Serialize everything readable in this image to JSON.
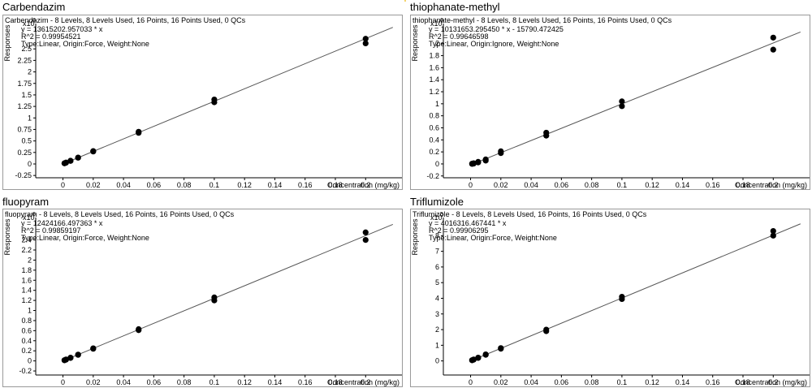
{
  "chart_data": [
    {
      "type": "scatter",
      "title": "Carbendazim",
      "header": "Carbendazim - 8 Levels, 8 Levels Used, 16 Points, 16 Points Used, 0 QCs",
      "equation": "y = 13615202.957033 * x",
      "r2": "R^2 = 0.99954521",
      "fit_type": "Type:Linear, Origin:Force, Weight:None",
      "xlabel": "Concentration (mg/kg)",
      "ylabel": "Responses",
      "yscale_label": "x10",
      "yscale_exp": "6",
      "xlim": [
        -0.018,
        0.224
      ],
      "ylim": [
        -0.3,
        2.98
      ],
      "xticks": [
        0,
        0.02,
        0.04,
        0.06,
        0.08,
        0.1,
        0.12,
        0.14,
        0.16,
        0.18,
        0.2
      ],
      "xtick_labels": [
        "0",
        "0.02",
        "0.04",
        "0.06",
        "0.08",
        "0.1",
        "0.12",
        "0.14",
        "0.16",
        "0.18",
        "0.2"
      ],
      "yticks": [
        -0.25,
        0,
        0.25,
        0.5,
        0.75,
        1,
        1.25,
        1.5,
        1.75,
        2,
        2.25,
        2.5
      ],
      "ytick_labels": [
        "-0.25",
        "0",
        "0.25",
        "0.5",
        "0.75",
        "1",
        "1.25",
        "1.5",
        "1.75",
        "2",
        "2.25",
        "2.5"
      ],
      "line": {
        "slope": 13.615202957,
        "intercept": 0,
        "x_range": [
          0,
          0.218
        ]
      },
      "points": {
        "x": [
          0.001,
          0.001,
          0.002,
          0.002,
          0.005,
          0.005,
          0.01,
          0.01,
          0.02,
          0.02,
          0.05,
          0.05,
          0.1,
          0.1,
          0.2,
          0.2
        ],
        "y": [
          0.013,
          0.016,
          0.026,
          0.03,
          0.066,
          0.07,
          0.135,
          0.14,
          0.27,
          0.28,
          0.675,
          0.7,
          1.34,
          1.4,
          2.62,
          2.72
        ]
      }
    },
    {
      "type": "scatter",
      "title": "thiophanate-methyl",
      "header": "thiophanate-methyl - 8 Levels, 8 Levels Used, 16 Points, 16 Points Used, 0 QCs",
      "equation": "y = 10131653.295450 * x  - 15790.472425",
      "r2": "R^2 = 0.99646598",
      "fit_type": "Type:Linear, Origin:Ignore, Weight:None",
      "xlabel": "Concentration (mg/kg)",
      "ylabel": "Responses",
      "yscale_label": "x10",
      "yscale_exp": "6",
      "xlim": [
        -0.018,
        0.224
      ],
      "ylim": [
        -0.23,
        2.28
      ],
      "xticks": [
        0,
        0.02,
        0.04,
        0.06,
        0.08,
        0.1,
        0.12,
        0.14,
        0.16,
        0.18,
        0.2
      ],
      "xtick_labels": [
        "0",
        "0.02",
        "0.04",
        "0.06",
        "0.08",
        "0.1",
        "0.12",
        "0.14",
        "0.16",
        "0.18",
        "0.2"
      ],
      "yticks": [
        -0.2,
        0,
        0.2,
        0.4,
        0.6,
        0.8,
        1,
        1.2,
        1.4,
        1.6,
        1.8,
        2
      ],
      "ytick_labels": [
        "-0.2",
        "0",
        "0.2",
        "0.4",
        "0.6",
        "0.8",
        "1",
        "1.2",
        "1.4",
        "1.6",
        "1.8",
        "2"
      ],
      "line": {
        "slope": 10.13165329545,
        "intercept": -0.015790472,
        "x_range": [
          0,
          0.218
        ]
      },
      "points": {
        "x": [
          0.001,
          0.001,
          0.002,
          0.002,
          0.005,
          0.005,
          0.01,
          0.01,
          0.02,
          0.02,
          0.05,
          0.05,
          0.1,
          0.1,
          0.2,
          0.2
        ],
        "y": [
          0.0,
          0.005,
          0.005,
          0.012,
          0.025,
          0.035,
          0.055,
          0.075,
          0.18,
          0.21,
          0.47,
          0.52,
          0.96,
          1.04,
          1.9,
          2.1
        ]
      }
    },
    {
      "type": "scatter",
      "title": "fluopyram",
      "header": "fluopyram - 8 Levels, 8 Levels Used, 16 Points, 16 Points Used, 0 QCs",
      "equation": "y = 12424166.497363 * x",
      "r2": "R^2 = 0.99859197",
      "fit_type": "Type:Linear, Origin:Force, Weight:None",
      "xlabel": "Concentration (mg/kg)",
      "ylabel": "Responses",
      "yscale_label": "x10",
      "yscale_exp": "6",
      "xlim": [
        -0.018,
        0.224
      ],
      "ylim": [
        -0.28,
        2.78
      ],
      "xticks": [
        0,
        0.02,
        0.04,
        0.06,
        0.08,
        0.1,
        0.12,
        0.14,
        0.16,
        0.18,
        0.2
      ],
      "xtick_labels": [
        "0",
        "0.02",
        "0.04",
        "0.06",
        "0.08",
        "0.1",
        "0.12",
        "0.14",
        "0.16",
        "0.18",
        "0.2"
      ],
      "yticks": [
        -0.2,
        0,
        0.2,
        0.4,
        0.6,
        0.8,
        1,
        1.2,
        1.4,
        1.6,
        1.8,
        2,
        2.2,
        2.4
      ],
      "ytick_labels": [
        "-0.2",
        "0",
        "0.2",
        "0.4",
        "0.6",
        "0.8",
        "1",
        "1.2",
        "1.4",
        "1.6",
        "1.8",
        "2",
        "2.2",
        "2.4"
      ],
      "line": {
        "slope": 12.424166497,
        "intercept": 0,
        "x_range": [
          0,
          0.218
        ]
      },
      "points": {
        "x": [
          0.001,
          0.001,
          0.002,
          0.002,
          0.005,
          0.005,
          0.01,
          0.01,
          0.02,
          0.02,
          0.05,
          0.05,
          0.1,
          0.1,
          0.2,
          0.2
        ],
        "y": [
          0.012,
          0.015,
          0.024,
          0.028,
          0.058,
          0.064,
          0.12,
          0.125,
          0.24,
          0.25,
          0.61,
          0.63,
          1.2,
          1.26,
          2.4,
          2.55
        ]
      }
    },
    {
      "type": "scatter",
      "title": "Triflumizole",
      "header": "Triflumizole - 8 Levels, 8 Levels Used, 16 Points, 16 Points Used, 0 QCs",
      "equation": "y = 4016316.467441 * x",
      "r2": "R^2 = 0.99906295",
      "fit_type": "Type:Linear, Origin:Force, Weight:None",
      "xlabel": "Concentration (mg/kg)",
      "ylabel": "Responses",
      "yscale_label": "x10",
      "yscale_exp": "5",
      "xlim": [
        -0.018,
        0.224
      ],
      "ylim": [
        -0.9,
        8.95
      ],
      "xticks": [
        0,
        0.02,
        0.04,
        0.06,
        0.08,
        0.1,
        0.12,
        0.14,
        0.16,
        0.18,
        0.2
      ],
      "xtick_labels": [
        "0",
        "0.02",
        "0.04",
        "0.06",
        "0.08",
        "0.1",
        "0.12",
        "0.14",
        "0.16",
        "0.18",
        "0.2"
      ],
      "yticks": [
        0,
        1,
        2,
        3,
        4,
        5,
        6,
        7,
        8
      ],
      "ytick_labels": [
        "0",
        "1",
        "2",
        "3",
        "4",
        "5",
        "6",
        "7",
        "8"
      ],
      "line": {
        "slope": 40.16316467,
        "intercept": 0,
        "x_range": [
          0,
          0.218
        ]
      },
      "points": {
        "x": [
          0.001,
          0.001,
          0.002,
          0.002,
          0.005,
          0.005,
          0.01,
          0.01,
          0.02,
          0.02,
          0.05,
          0.05,
          0.1,
          0.1,
          0.2,
          0.2
        ],
        "y": [
          0.04,
          0.05,
          0.08,
          0.09,
          0.19,
          0.21,
          0.39,
          0.42,
          0.78,
          0.82,
          1.9,
          2.0,
          3.95,
          4.1,
          8.0,
          8.3
        ]
      }
    }
  ]
}
